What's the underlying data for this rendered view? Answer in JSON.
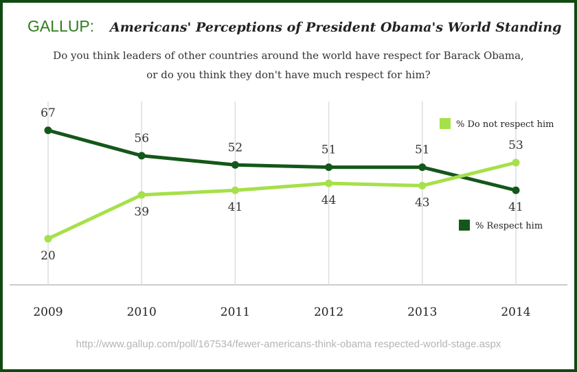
{
  "chart_data": {
    "type": "line",
    "brand": "GALLUP:",
    "title": "Americans' Perceptions of President Obama's World Standing",
    "subtitle": [
      "Do you think leaders of other countries around the world have respect for Barack Obama,",
      "or do you think they don't have much respect for him?"
    ],
    "categories": [
      "2009",
      "2010",
      "2011",
      "2012",
      "2013",
      "2014"
    ],
    "series": [
      {
        "name": "% Respect him",
        "color": "#14571a",
        "values": [
          67,
          56,
          52,
          51,
          51,
          41
        ]
      },
      {
        "name": "% Do not respect him",
        "color": "#a6e04a",
        "values": [
          20,
          39,
          41,
          44,
          43,
          53
        ]
      }
    ],
    "grid": true,
    "source": "http://www.gallup.com/poll/167534/fewer-americans-think-obama respected-world-stage.aspx"
  }
}
